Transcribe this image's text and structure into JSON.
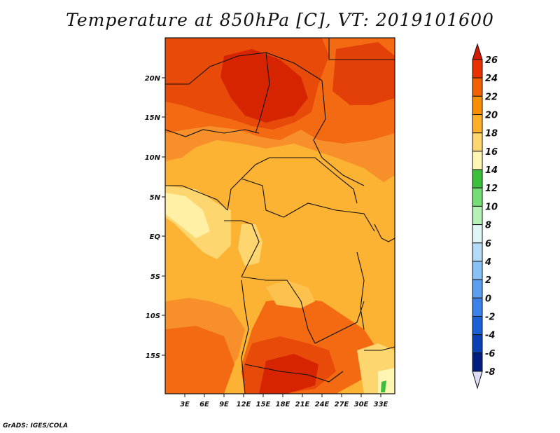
{
  "title": "Temperature at 850hPa [C], VT: 2019101600",
  "credit": "GrADS: IGES/COLA",
  "map": {
    "lon_labels": [
      "3E",
      "6E",
      "9E",
      "12E",
      "15E",
      "18E",
      "21E",
      "24E",
      "27E",
      "30E",
      "33E"
    ],
    "lat_labels": [
      "20N",
      "15N",
      "10N",
      "5N",
      "EQ",
      "5S",
      "10S",
      "15S"
    ]
  },
  "colorbar": {
    "levels": [
      "26",
      "24",
      "22",
      "20",
      "18",
      "16",
      "14",
      "12",
      "10",
      "8",
      "6",
      "4",
      "2",
      "0",
      "-2",
      "-4",
      "-6",
      "-8"
    ],
    "colors": [
      "#d21a00",
      "#e83000",
      "#f36000",
      "#f98e00",
      "#fcaf29",
      "#fdd670",
      "#fff5b3",
      "#3cbf3c",
      "#76dc76",
      "#b3f0b3",
      "#e0f6f6",
      "#b3dbf7",
      "#87c1f5",
      "#5aa0ee",
      "#3a82e8",
      "#1b60d6",
      "#0b3fb4",
      "#001d7f",
      "#000a50"
    ]
  }
}
